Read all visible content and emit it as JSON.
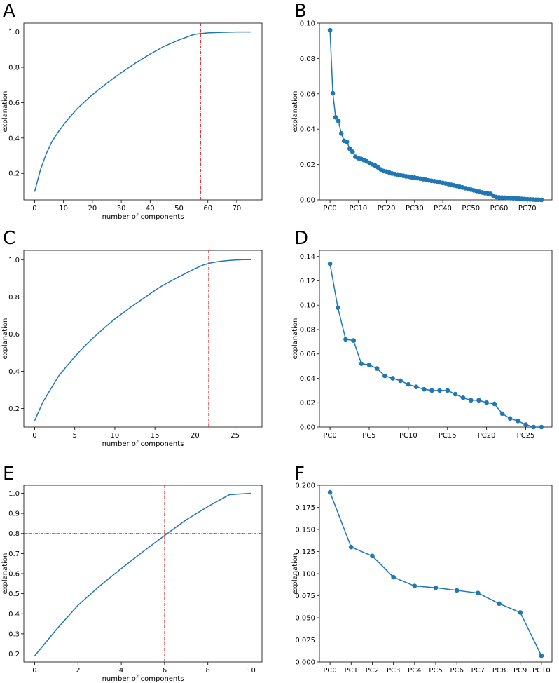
{
  "figure_colors": {
    "series": "#1f77b4",
    "threshold": "#d62728"
  },
  "chart_data": [
    {
      "panel": "A",
      "type": "line",
      "xlabel": "number of components",
      "ylabel": "explanation",
      "xlim": [
        -3.75,
        78.75
      ],
      "ylim": [
        0.05,
        1.05
      ],
      "xticks": [
        0,
        10,
        20,
        30,
        40,
        50,
        60,
        70
      ],
      "yticks": [
        0.2,
        0.4,
        0.6,
        0.8,
        1.0
      ],
      "ytick_labels": [
        "0.2",
        "0.4",
        "0.6",
        "0.8",
        "1.0"
      ],
      "x": [
        0,
        2,
        4,
        6,
        8,
        10,
        12,
        15,
        20,
        25,
        30,
        35,
        40,
        45,
        50,
        55,
        57,
        60,
        65,
        70,
        75
      ],
      "values": [
        0.096,
        0.22,
        0.31,
        0.38,
        0.43,
        0.475,
        0.515,
        0.57,
        0.645,
        0.71,
        0.77,
        0.825,
        0.875,
        0.92,
        0.955,
        0.985,
        0.99,
        0.995,
        0.998,
        1.0,
        1.0
      ],
      "vline": 57.5
    },
    {
      "panel": "B",
      "type": "line",
      "markers": true,
      "xlabel": "",
      "ylabel": "explanation",
      "xlim": [
        -3.75,
        78.75
      ],
      "ylim": [
        0.0,
        0.1
      ],
      "xticks": [
        0,
        10,
        20,
        30,
        40,
        50,
        60,
        70
      ],
      "xtick_labels": [
        "PC0",
        "PC10",
        "PC20",
        "PC30",
        "PC40",
        "PC50",
        "PC60",
        "PC70"
      ],
      "yticks": [
        0.0,
        0.02,
        0.04,
        0.06,
        0.08,
        0.1
      ],
      "ytick_labels": [
        "0.00",
        "0.02",
        "0.04",
        "0.06",
        "0.08",
        "0.10"
      ],
      "values": [
        0.096,
        0.0603,
        0.0467,
        0.0446,
        0.0376,
        0.0334,
        0.0328,
        0.0289,
        0.0272,
        0.0244,
        0.0236,
        0.0232,
        0.0225,
        0.0218,
        0.0209,
        0.0201,
        0.0194,
        0.0184,
        0.0172,
        0.0163,
        0.016,
        0.0155,
        0.0149,
        0.0146,
        0.0143,
        0.0139,
        0.0136,
        0.0133,
        0.0131,
        0.0128,
        0.0126,
        0.0123,
        0.012,
        0.0117,
        0.0114,
        0.0111,
        0.0108,
        0.0106,
        0.0103,
        0.0099,
        0.0096,
        0.0093,
        0.0089,
        0.0085,
        0.0082,
        0.0078,
        0.0074,
        0.007,
        0.0066,
        0.0062,
        0.0058,
        0.0054,
        0.005,
        0.0046,
        0.0042,
        0.0038,
        0.0036,
        0.0034,
        0.0022,
        0.0016,
        0.0014,
        0.0013,
        0.0012,
        0.0011,
        0.001,
        0.0009,
        0.0008,
        0.0007,
        0.0006,
        0.0005,
        0.0004,
        0.0003,
        0.0002,
        0.0001,
        0.0001,
        0.0
      ]
    },
    {
      "panel": "C",
      "type": "line",
      "xlabel": "number of components",
      "ylabel": "explanation",
      "xlim": [
        -1.35,
        28.35
      ],
      "ylim": [
        0.1,
        1.05
      ],
      "xticks": [
        0,
        5,
        10,
        15,
        20,
        25
      ],
      "yticks": [
        0.2,
        0.4,
        0.6,
        0.8,
        1.0
      ],
      "ytick_labels": [
        "0.2",
        "0.4",
        "0.6",
        "0.8",
        "1.0"
      ],
      "x": [
        0,
        1,
        2,
        3,
        4,
        5,
        6,
        7,
        8,
        9,
        10,
        11,
        12,
        13,
        14,
        15,
        16,
        17,
        18,
        19,
        20,
        21,
        22,
        23,
        24,
        25,
        26,
        27
      ],
      "values": [
        0.134,
        0.232,
        0.304,
        0.375,
        0.427,
        0.478,
        0.525,
        0.567,
        0.607,
        0.645,
        0.681,
        0.713,
        0.745,
        0.775,
        0.805,
        0.835,
        0.862,
        0.885,
        0.908,
        0.93,
        0.952,
        0.971,
        0.983,
        0.99,
        0.995,
        0.998,
        1.0,
        1.0
      ],
      "vline": 21.7
    },
    {
      "panel": "D",
      "type": "line",
      "markers": true,
      "xlabel": "",
      "ylabel": "explanation",
      "xlim": [
        -1.35,
        28.35
      ],
      "ylim": [
        0.0,
        0.145
      ],
      "xticks": [
        0,
        5,
        10,
        15,
        20,
        25
      ],
      "xtick_labels": [
        "PC0",
        "PC5",
        "PC10",
        "PC15",
        "PC20",
        "PC25"
      ],
      "yticks": [
        0.0,
        0.02,
        0.04,
        0.06,
        0.08,
        0.1,
        0.12,
        0.14
      ],
      "ytick_labels": [
        "0.00",
        "0.02",
        "0.04",
        "0.06",
        "0.08",
        "0.10",
        "0.12",
        "0.14"
      ],
      "values": [
        0.134,
        0.098,
        0.072,
        0.071,
        0.052,
        0.051,
        0.048,
        0.042,
        0.04,
        0.038,
        0.035,
        0.033,
        0.031,
        0.03,
        0.03,
        0.03,
        0.027,
        0.024,
        0.022,
        0.022,
        0.02,
        0.019,
        0.011,
        0.007,
        0.005,
        0.002,
        0.0,
        0.0
      ]
    },
    {
      "panel": "E",
      "type": "line",
      "xlabel": "number of components",
      "ylabel": "explanation",
      "xlim": [
        -0.5,
        10.5
      ],
      "ylim": [
        0.16,
        1.04
      ],
      "xticks": [
        0,
        2,
        4,
        6,
        8,
        10
      ],
      "yticks": [
        0.2,
        0.3,
        0.4,
        0.5,
        0.6,
        0.7,
        0.8,
        0.9,
        1.0
      ],
      "ytick_labels": [
        "0.2",
        "0.3",
        "0.4",
        "0.5",
        "0.6",
        "0.7",
        "0.8",
        "0.9",
        "1.0"
      ],
      "x": [
        0,
        1,
        2,
        3,
        4,
        5,
        6,
        7,
        8,
        9,
        10
      ],
      "values": [
        0.19,
        0.321,
        0.442,
        0.538,
        0.625,
        0.709,
        0.79,
        0.868,
        0.934,
        0.993,
        1.0
      ],
      "vline": 6.0,
      "hline": 0.8
    },
    {
      "panel": "F",
      "type": "line",
      "markers": true,
      "xlabel": "",
      "ylabel": "explanation",
      "xlim": [
        -0.5,
        10.5
      ],
      "ylim": [
        0.0,
        0.2
      ],
      "xticks": [
        0,
        1,
        2,
        3,
        4,
        5,
        6,
        7,
        8,
        9,
        10
      ],
      "xtick_labels": [
        "PC0",
        "PC1",
        "PC2",
        "PC3",
        "PC4",
        "PC5",
        "PC6",
        "PC7",
        "PC8",
        "PC9",
        "PC10"
      ],
      "yticks": [
        0.0,
        0.025,
        0.05,
        0.075,
        0.1,
        0.125,
        0.15,
        0.175,
        0.2
      ],
      "ytick_labels": [
        "0.000",
        "0.025",
        "0.050",
        "0.075",
        "0.100",
        "0.125",
        "0.150",
        "0.175",
        "0.200"
      ],
      "values": [
        0.192,
        0.13,
        0.12,
        0.096,
        0.086,
        0.084,
        0.081,
        0.078,
        0.066,
        0.056,
        0.007
      ]
    }
  ]
}
